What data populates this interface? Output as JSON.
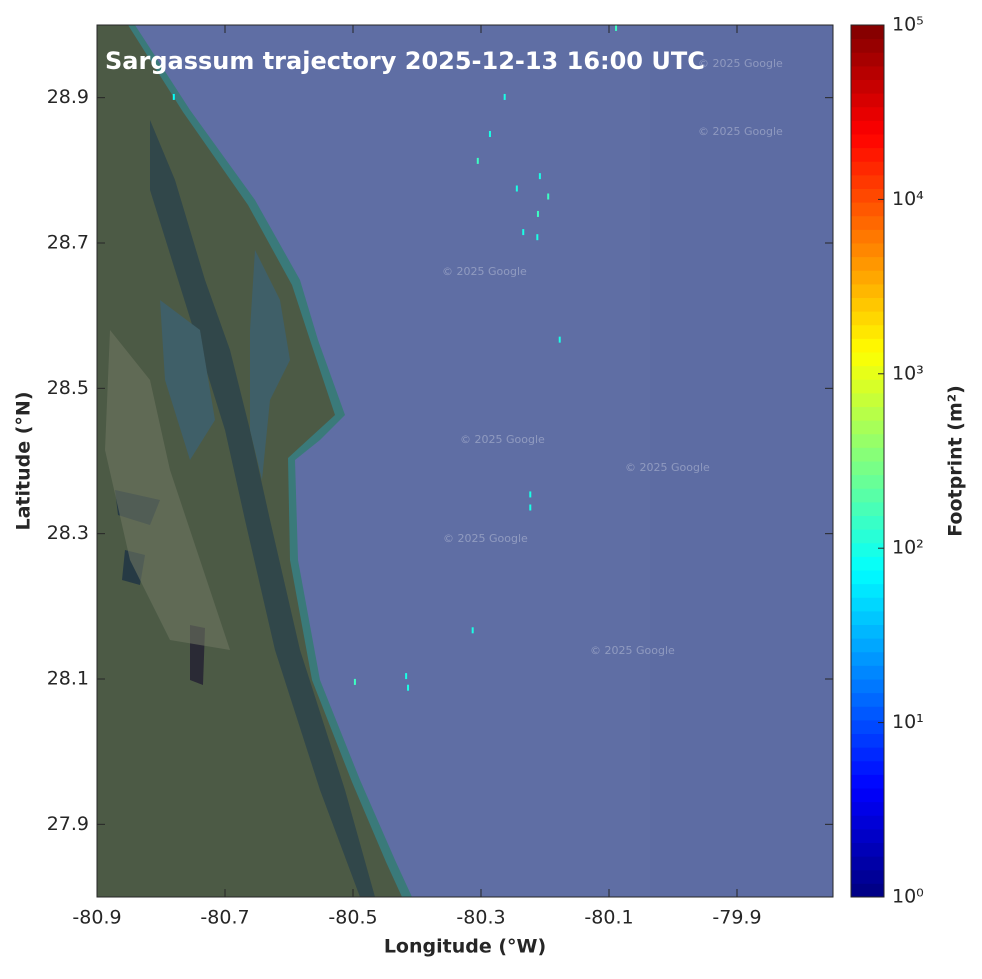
{
  "chart_data": {
    "type": "scatter",
    "title": "Sargassum trajectory 2025-12-13 16:00 UTC",
    "x_label": "Longitude (°W)",
    "y_label": "Latitude (°N)",
    "attribution": "© 2025 Google",
    "xlim": [
      -80.9,
      -79.75
    ],
    "ylim": [
      27.8,
      29.0
    ],
    "xticks": [
      -80.9,
      -80.7,
      -80.5,
      -80.3,
      -80.1,
      -79.9
    ],
    "yticks": [
      27.9,
      28.1,
      28.3,
      28.5,
      28.7,
      28.9
    ],
    "x": [
      -80.089,
      -80.263,
      -80.286,
      -80.305,
      -80.244,
      -80.208,
      -80.195,
      -80.211,
      -80.234,
      -80.212,
      -80.177,
      -80.223,
      -80.223,
      -80.313,
      -80.497,
      -80.417,
      -80.414,
      -80.78
    ],
    "values": [
      28.996,
      28.901,
      28.85,
      28.813,
      28.775,
      28.792,
      28.764,
      28.74,
      28.715,
      28.708,
      28.567,
      28.354,
      28.336,
      28.167,
      28.096,
      28.104,
      28.088,
      28.901
    ],
    "color_values": [
      150,
      100,
      100,
      150,
      100,
      100,
      150,
      150,
      100,
      100,
      100,
      100,
      100,
      100,
      150,
      100,
      100,
      80
    ],
    "colorbar": {
      "label": "Footprint (m²)",
      "colormap": "jet",
      "log_scale": true,
      "lim": [
        1,
        100000
      ],
      "ticks": [
        {
          "value": 1,
          "label": "10⁰"
        },
        {
          "value": 10,
          "label": "10¹"
        },
        {
          "value": 100,
          "label": "10²"
        },
        {
          "value": 1000,
          "label": "10³"
        },
        {
          "value": 10000,
          "label": "10⁴"
        },
        {
          "value": 100000,
          "label": "10⁵"
        }
      ]
    }
  }
}
